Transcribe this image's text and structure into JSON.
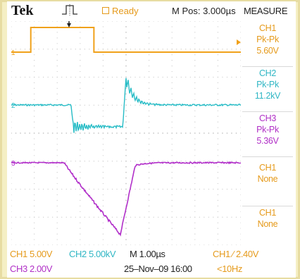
{
  "header": {
    "brand": "Tek",
    "trigger_icon": "trigger-pulse-icon",
    "status": "Ready",
    "horizontal_position": "M Pos: 3.000µs",
    "measure_title": "MEASURE"
  },
  "markers": {
    "ch1": "1",
    "ch2": "2",
    "ch3": "3"
  },
  "measurements": [
    {
      "source": "CH1",
      "type": "Pk-Pk",
      "value": "5.60V",
      "color": "#e59a1b"
    },
    {
      "source": "CH2",
      "type": "Pk-Pk",
      "value": "11.2kV",
      "color": "#2fb6c4"
    },
    {
      "source": "CH3",
      "type": "Pk-Pk",
      "value": "5.36V",
      "color": "#b02fc6"
    },
    {
      "source": "CH1",
      "type": "None",
      "value": "",
      "color": "#e59a1b"
    },
    {
      "source": "CH1",
      "type": "None",
      "value": "",
      "color": "#e59a1b"
    }
  ],
  "footer": {
    "ch1_scale": "CH1  5.00V",
    "ch2_scale": "CH2  5.00kV",
    "time_scale": "M 1.00µs",
    "trigger": "CH1 ∕ 2.40V",
    "ch3_scale": "CH3  2.00V",
    "datetime": "25–Nov–09 16:00",
    "trigger_freq": "<10Hz"
  },
  "colors": {
    "ch1": "#f0a11a",
    "ch2": "#27bcc6",
    "ch3": "#b12fc9",
    "grid": "#c8c8c8"
  },
  "waveforms": {
    "ch1": {
      "low": 0,
      "high": 1,
      "rise_div": 0.85,
      "fall_div": 3.6
    },
    "ch2": {
      "baseline": 0,
      "dip_start_div": 2.6,
      "dip_end_div": 4.85,
      "overshoot_div": 4.9
    },
    "ch3": {
      "baseline": 0,
      "ramp_start_div": 2.3,
      "min_div": 4.75,
      "recover_div": 5.4
    }
  }
}
